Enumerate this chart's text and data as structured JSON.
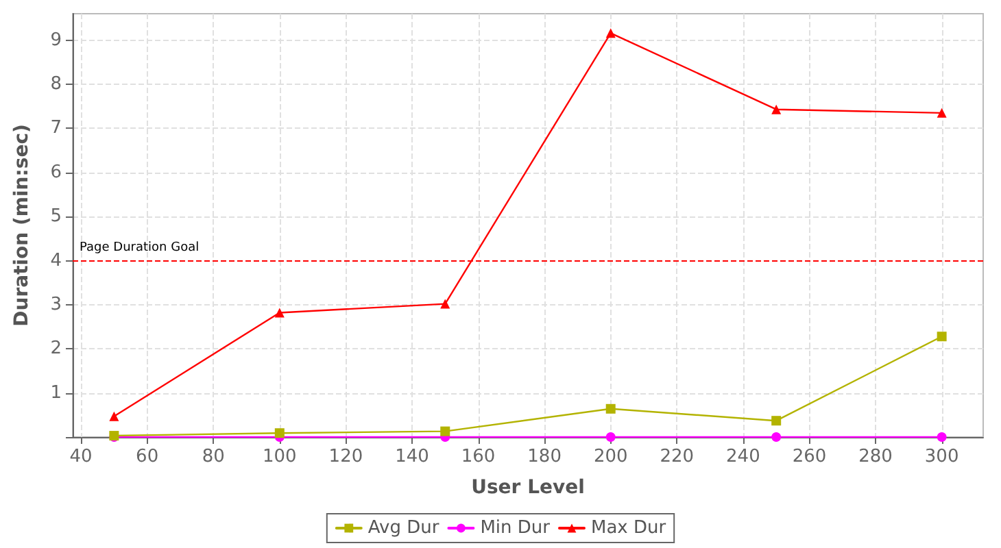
{
  "chart_data": {
    "type": "line",
    "xlabel": "User Level",
    "ylabel": "Duration (min:sec)",
    "series": [
      {
        "name": "Avg Dur",
        "color": "#b3b300",
        "marker": "square",
        "x": [
          50,
          100,
          150,
          200,
          250,
          300
        ],
        "values": [
          0.03,
          0.09,
          0.13,
          0.64,
          0.37,
          2.28
        ]
      },
      {
        "name": "Min Dur",
        "color": "#ff00ff",
        "marker": "circle",
        "x": [
          50,
          100,
          150,
          200,
          250,
          300
        ],
        "values": [
          0,
          0,
          0,
          0,
          0,
          0
        ]
      },
      {
        "name": "Max Dur",
        "color": "#ff0000",
        "marker": "triangle",
        "x": [
          50,
          100,
          150,
          200,
          250,
          300
        ],
        "values": [
          0.47,
          2.82,
          3.02,
          9.16,
          7.43,
          7.35
        ]
      }
    ],
    "xlim": [
      37.5,
      312.5
    ],
    "xticks": [
      40,
      60,
      80,
      100,
      120,
      140,
      160,
      180,
      200,
      220,
      240,
      260,
      280,
      300
    ],
    "ylim": [
      0,
      9.6
    ],
    "yticks": [
      {
        "value": 0,
        "label": null
      },
      1,
      2,
      3,
      4,
      5,
      6,
      7,
      8,
      9
    ],
    "ref_lines": [
      {
        "axis": "y",
        "value": 4,
        "label": "Page Duration Goal",
        "color": "#ff0000",
        "line_style": "dashed"
      }
    ],
    "grid": true,
    "legend": "bottom"
  }
}
